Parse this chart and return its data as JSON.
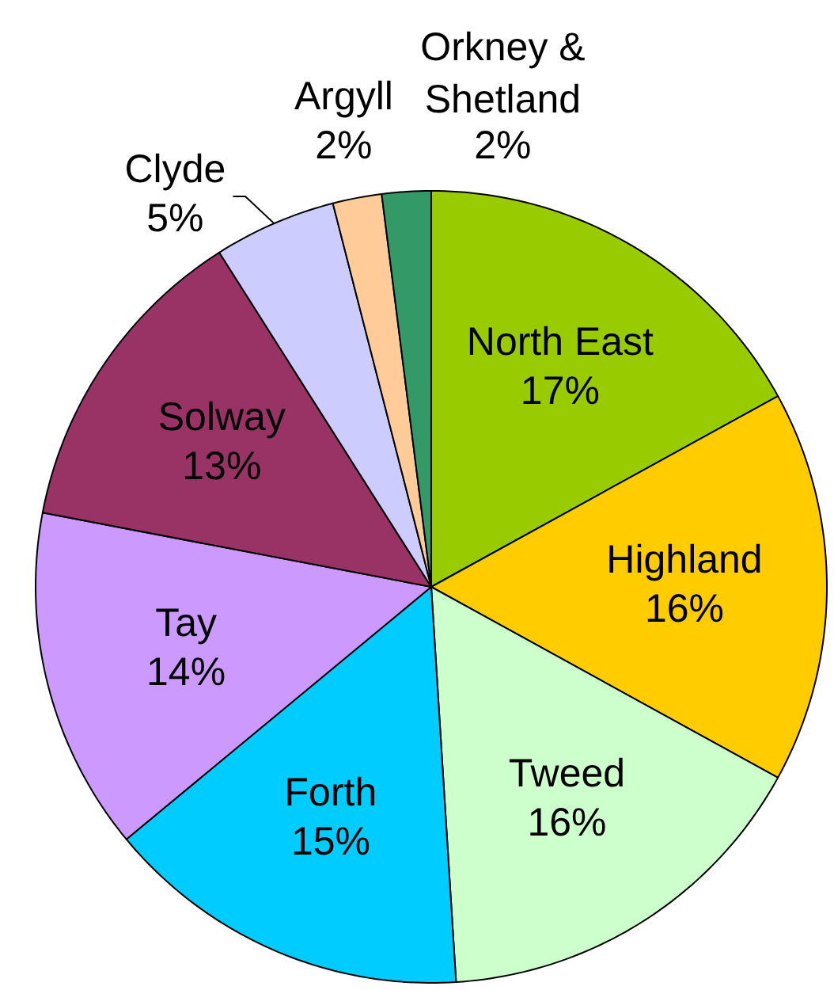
{
  "chart_data": {
    "type": "pie",
    "categories": [
      "North East",
      "Highland",
      "Tweed",
      "Forth",
      "Tay",
      "Solway",
      "Clyde",
      "Argyll",
      "Orkney & Shetland"
    ],
    "values": [
      17,
      16,
      16,
      15,
      14,
      13,
      5,
      2,
      2
    ],
    "value_labels": [
      "17%",
      "16%",
      "16%",
      "15%",
      "14%",
      "13%",
      "5%",
      "2%",
      "2%"
    ],
    "colors": [
      "#99cc00",
      "#ffcc00",
      "#ccffcc",
      "#00ccff",
      "#cc99ff",
      "#993366",
      "#ccccff",
      "#ffcc99",
      "#339966"
    ]
  }
}
